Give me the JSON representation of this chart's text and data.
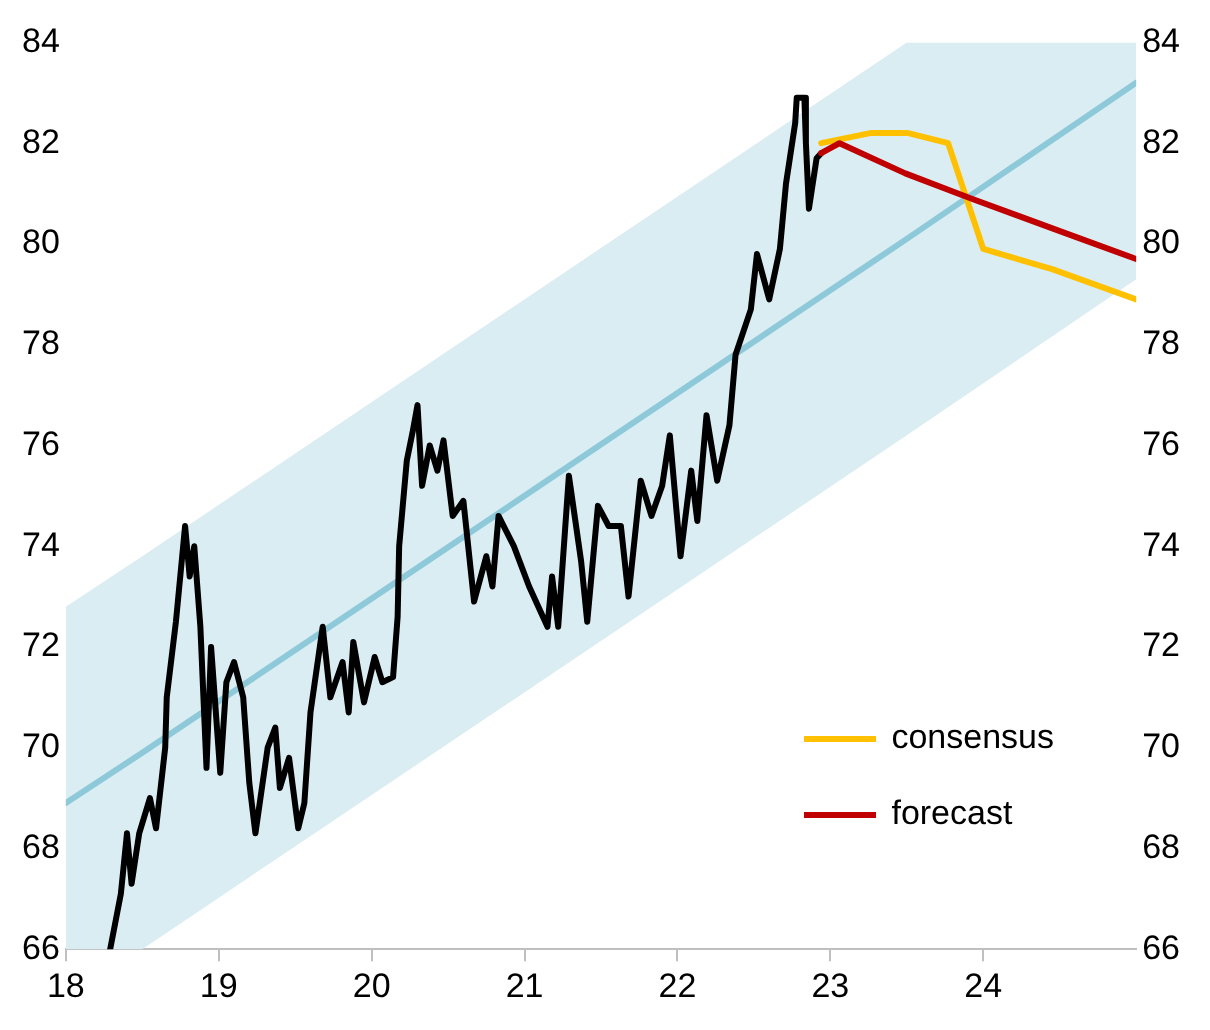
{
  "chart_data": {
    "type": "line",
    "xlim": [
      18,
      25
    ],
    "xticks": [
      18,
      19,
      20,
      21,
      22,
      23,
      24
    ],
    "ylim": [
      66,
      84
    ],
    "yticks": [
      66,
      68,
      70,
      72,
      74,
      76,
      78,
      80,
      82,
      84
    ],
    "y2lim": [
      66,
      84
    ],
    "y2ticks": [
      66,
      68,
      70,
      72,
      74,
      76,
      78,
      80,
      82,
      84
    ],
    "grid": false,
    "legend": "bottom right",
    "marker": "none",
    "line_style": "solid",
    "series": [
      {
        "color": "#8ec9da",
        "x": [
          18,
          18.5,
          23.5,
          25
        ],
        "values": [
          68.9,
          69.9,
          80.1,
          83.2
        ],
        "lower": [
          66,
          66,
          76.2,
          79.3
        ],
        "upper": [
          72.8,
          73.8,
          84,
          84
        ]
      },
      {
        "color": "#000000",
        "x": [
          18.29,
          18.36,
          18.4,
          18.43,
          18.48,
          18.55,
          18.59,
          18.65,
          18.66,
          18.72,
          18.78,
          18.81,
          18.84,
          18.88,
          18.92,
          18.95,
          19.01,
          19.05,
          19.1,
          19.16,
          19.2,
          19.24,
          19.32,
          19.37,
          19.4,
          19.46,
          19.52,
          19.56,
          19.6,
          19.68,
          19.73,
          19.81,
          19.85,
          19.88,
          19.95,
          20.02,
          20.07,
          20.14,
          20.17,
          20.18,
          20.23,
          20.27,
          20.3,
          20.33,
          20.38,
          20.43,
          20.47,
          20.53,
          20.6,
          20.67,
          20.75,
          20.79,
          20.83,
          20.93,
          21.03,
          21.15,
          21.18,
          21.22,
          21.29,
          21.37,
          21.41,
          21.48,
          21.55,
          21.63,
          21.68,
          21.76,
          21.83,
          21.9,
          21.95,
          22.02,
          22.09,
          22.13,
          22.19,
          22.26,
          22.34,
          22.38,
          22.48,
          22.52,
          22.6,
          22.67,
          22.71,
          22.77,
          22.78,
          22.83,
          22.84,
          22.86,
          22.91,
          22.94
        ],
        "values": [
          66.0,
          67.1,
          68.3,
          67.3,
          68.3,
          69.0,
          68.4,
          70.0,
          71.0,
          72.5,
          74.4,
          73.4,
          74.0,
          72.4,
          69.6,
          72.0,
          69.5,
          71.3,
          71.7,
          71.0,
          69.3,
          68.3,
          70.0,
          70.4,
          69.2,
          69.8,
          68.4,
          68.9,
          70.7,
          72.4,
          71.0,
          71.7,
          70.7,
          72.1,
          70.9,
          71.8,
          71.3,
          71.4,
          72.6,
          74.0,
          75.7,
          76.3,
          76.8,
          75.2,
          76.0,
          75.5,
          76.1,
          74.6,
          74.9,
          72.9,
          73.8,
          73.2,
          74.6,
          74.0,
          73.2,
          72.4,
          73.4,
          72.4,
          75.4,
          73.7,
          72.5,
          74.8,
          74.4,
          74.4,
          73.0,
          75.3,
          74.6,
          75.2,
          76.2,
          73.8,
          75.5,
          74.5,
          76.6,
          75.3,
          76.4,
          77.8,
          78.7,
          79.8,
          78.9,
          79.9,
          81.2,
          82.4,
          82.9,
          82.9,
          82.0,
          80.7,
          81.7,
          81.8
        ]
      },
      {
        "name": "consensus",
        "color": "#ffc000",
        "x": [
          22.94,
          23.26,
          23.51,
          23.77,
          24.0,
          24.45,
          25
        ],
        "values": [
          82.0,
          82.2,
          82.2,
          82.0,
          79.9,
          79.5,
          78.9
        ]
      },
      {
        "name": "forecast",
        "color": "#c00000",
        "x": [
          22.94,
          23.06,
          23.49,
          23.92,
          24.55,
          25
        ],
        "values": [
          81.8,
          82.0,
          81.4,
          80.9,
          80.2,
          79.7
        ]
      }
    ]
  }
}
